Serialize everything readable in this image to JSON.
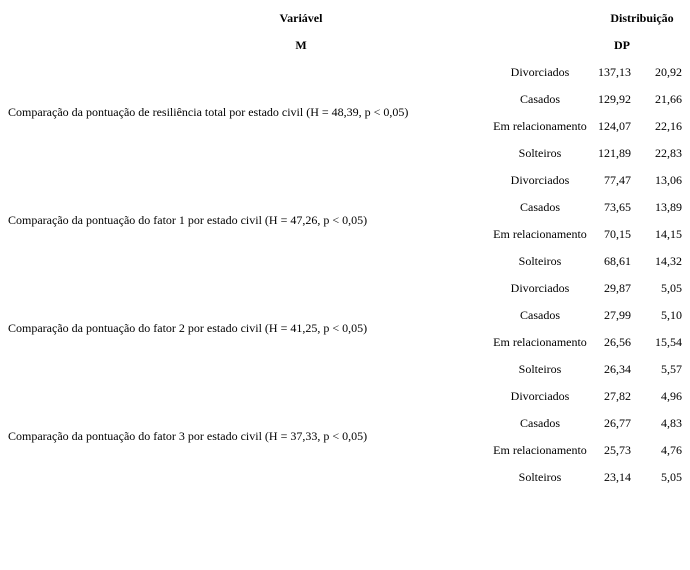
{
  "header": {
    "col1": "Variável",
    "col1_sub": "M",
    "col2": "Distribuição",
    "col2_sub": "DP"
  },
  "groups": [
    {
      "label": "Comparação da pontuação de resiliência total por estado civil (H = 48,39, p < 0,05)",
      "rows": [
        [
          "Divorciados",
          "137,13",
          "20,92"
        ],
        [
          "Casados",
          "129,92",
          "21,66"
        ],
        [
          "Em relacionamento",
          "124,07",
          "22,16"
        ],
        [
          "Solteiros",
          "121,89",
          "22,83"
        ]
      ]
    },
    {
      "label": "Comparação da pontuação do fator 1 por estado civil (H = 47,26, p < 0,05)",
      "rows": [
        [
          "Divorciados",
          "77,47",
          "13,06"
        ],
        [
          "Casados",
          "73,65",
          "13,89"
        ],
        [
          "Em relacionamento",
          "70,15",
          "14,15"
        ],
        [
          "Solteiros",
          "68,61",
          "14,32"
        ]
      ]
    },
    {
      "label": "Comparação da pontuação do fator 2 por estado civil (H = 41,25, p < 0,05)",
      "rows": [
        [
          "Divorciados",
          "29,87",
          "5,05"
        ],
        [
          "Casados",
          "27,99",
          "5,10"
        ],
        [
          "Em relacionamento",
          "26,56",
          "15,54"
        ],
        [
          "Solteiros",
          "26,34",
          "5,57"
        ]
      ]
    },
    {
      "label": "Comparação da pontuação do fator 3 por estado civil (H = 37,33, p < 0,05)",
      "rows": [
        [
          "Divorciados",
          "27,82",
          "4,96"
        ],
        [
          "Casados",
          "26,77",
          "4,83"
        ],
        [
          "Em relacionamento",
          "25,73",
          "4,76"
        ],
        [
          "Solteiros",
          "23,14",
          "5,05"
        ]
      ]
    }
  ]
}
